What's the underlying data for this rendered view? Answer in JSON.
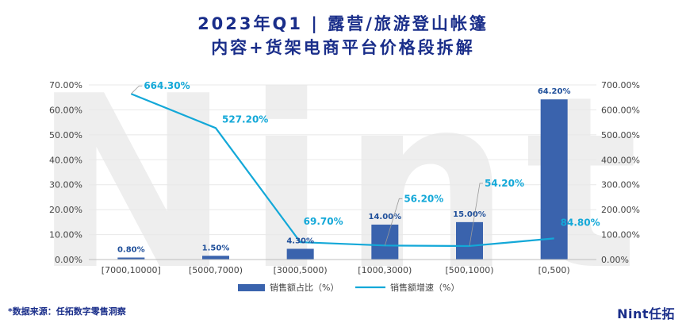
{
  "header": {
    "title_line1": "2023年Q1 | 露营/旅游登山帐篷",
    "title_line2": "内容+货架电商平台价格段拆解"
  },
  "footer": {
    "source": "*数据来源：任拓数字零售洞察",
    "logo": "Nint任拓"
  },
  "watermark": "Nint",
  "colors": {
    "bar": "#3a63ad",
    "line": "#13a8d8",
    "title": "#1a2e8a"
  },
  "chart_data": {
    "type": "bar+line",
    "categories": [
      "[7000,10000]",
      "[5000,7000)",
      "[3000,5000)",
      "[1000,3000)",
      "[500,1000)",
      "[0,500)"
    ],
    "series": [
      {
        "name": "销售额占比（%）",
        "type": "bar",
        "axis": "left",
        "values": [
          0.8,
          1.5,
          4.3,
          14.0,
          15.0,
          64.2
        ],
        "labels": [
          "0.80%",
          "1.50%",
          "4.30%",
          "14.00%",
          "15.00%",
          "64.20%"
        ]
      },
      {
        "name": "销售额增速（%）",
        "type": "line",
        "axis": "right",
        "values": [
          664.3,
          527.2,
          69.7,
          56.2,
          54.2,
          84.8
        ],
        "labels": [
          "664.30%",
          "527.20%",
          "69.70%",
          "56.20%",
          "54.20%",
          "84.80%"
        ]
      }
    ],
    "y_left": {
      "min": 0,
      "max": 70,
      "step": 10,
      "tick_labels": [
        "0.00%",
        "10.00%",
        "20.00%",
        "30.00%",
        "40.00%",
        "50.00%",
        "60.00%",
        "70.00%"
      ]
    },
    "y_right": {
      "min": 0,
      "max": 700,
      "step": 100,
      "tick_labels": [
        "0.00%",
        "100.00%",
        "200.00%",
        "300.00%",
        "400.00%",
        "500.00%",
        "600.00%",
        "700.00%"
      ]
    },
    "legend_position": "bottom-center"
  }
}
